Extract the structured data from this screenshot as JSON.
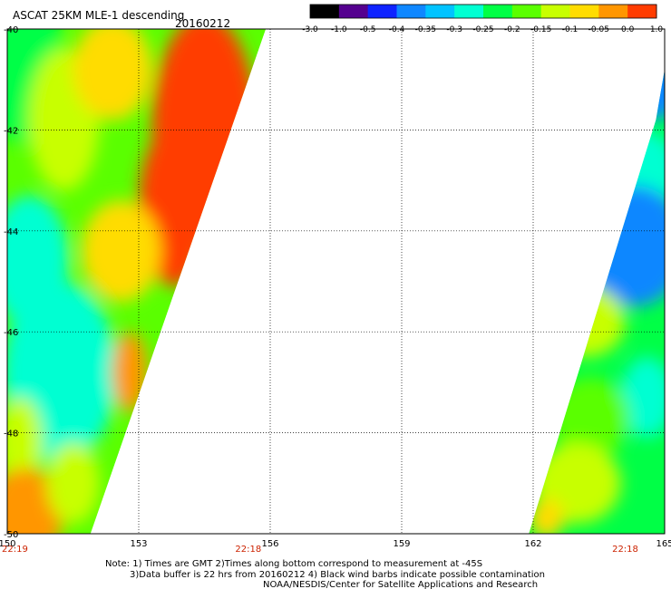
{
  "header": {
    "title": "ASCAT 25KM MLE-1 descending",
    "date": "20160212"
  },
  "colorbar": {
    "tick_labels": [
      "-3.0",
      "-1.0",
      "-0.5",
      "-0.4",
      "-0.35",
      "-0.3",
      "-0.25",
      "-0.2",
      "-0.15",
      "-0.1",
      "-0.05",
      "0.0",
      "1.0"
    ]
  },
  "footer": {
    "note_line1": "Note: 1) Times are GMT 2)Times along bottom correspond to measurement at -45S",
    "note_line2": "3)Data buffer is 22 hrs from 20160212 4) Black wind barbs indicate possible contamination",
    "note_line3": "NOAA/NESDIS/Center for Satellite Applications and Research"
  },
  "chart_data": {
    "type": "heatmap",
    "title": "ASCAT 25KM MLE-1 descending",
    "date": "20160212",
    "xlim": [
      150,
      165
    ],
    "ylim": [
      -50,
      -40
    ],
    "x_ticks": [
      150,
      153,
      156,
      159,
      162,
      165
    ],
    "y_ticks": [
      -40,
      -42,
      -44,
      -46,
      -48,
      -50
    ],
    "x_tick_labels": [
      "150",
      "153",
      "156",
      "159",
      "162",
      "165"
    ],
    "y_tick_labels": [
      "-40",
      "-42",
      "-44",
      "-46",
      "-48",
      "-50"
    ],
    "time_labels": [
      {
        "x": 150,
        "label": "22:19"
      },
      {
        "x": 155.5,
        "label": "22:18"
      },
      {
        "x": 164.1,
        "label": "22:18"
      }
    ],
    "grid": true,
    "colorbar_levels": [
      -3.0,
      -1.0,
      -0.5,
      -0.4,
      -0.35,
      -0.3,
      -0.25,
      -0.2,
      -0.15,
      -0.1,
      -0.05,
      0.0,
      1.0
    ],
    "colorbar_colors": [
      "#000000",
      "#55008f",
      "#0f23ff",
      "#0f87ff",
      "#00c3ff",
      "#00ffd2",
      "#00ff46",
      "#5aff00",
      "#c8ff00",
      "#ffdc00",
      "#ff9600",
      "#ff3c00"
    ],
    "swaths": [
      {
        "name": "west swath",
        "boundary": [
          [
            150,
            -40
          ],
          [
            155.9,
            -40
          ],
          [
            151.9,
            -50
          ],
          [
            150,
            -50
          ]
        ],
        "patches": [
          {
            "lon": 150.4,
            "lat": -40.7,
            "rx": 0.9,
            "ry": 1.6,
            "value": -0.25
          },
          {
            "lon": 151.3,
            "lat": -41.8,
            "rx": 0.8,
            "ry": 1.4,
            "value": -0.15
          },
          {
            "lon": 152.4,
            "lat": -40.8,
            "rx": 0.9,
            "ry": 1.0,
            "value": -0.1
          },
          {
            "lon": 154.5,
            "lat": -42.0,
            "rx": 1.2,
            "ry": 2.3,
            "value": 0.0
          },
          {
            "lon": 153.8,
            "lat": -43.5,
            "rx": 0.8,
            "ry": 1.6,
            "value": 0.0
          },
          {
            "lon": 152.6,
            "lat": -44.4,
            "rx": 0.9,
            "ry": 1.0,
            "value": -0.1
          },
          {
            "lon": 150.5,
            "lat": -44.6,
            "rx": 0.9,
            "ry": 1.3,
            "value": -0.3
          },
          {
            "lon": 151.2,
            "lat": -46.8,
            "rx": 1.3,
            "ry": 1.8,
            "value": -0.3
          },
          {
            "lon": 152.8,
            "lat": -46.8,
            "rx": 0.4,
            "ry": 0.8,
            "value": -0.05
          },
          {
            "lon": 150.3,
            "lat": -48.2,
            "rx": 0.5,
            "ry": 0.9,
            "value": -0.15
          },
          {
            "lon": 150.4,
            "lat": -49.6,
            "rx": 0.9,
            "ry": 0.9,
            "value": -0.05
          },
          {
            "lon": 151.5,
            "lat": -49.0,
            "rx": 0.6,
            "ry": 0.8,
            "value": -0.15
          }
        ]
      },
      {
        "name": "east swath",
        "boundary": [
          [
            165,
            -40.8
          ],
          [
            165,
            -50
          ],
          [
            161.9,
            -50
          ],
          [
            164.8,
            -41.8
          ]
        ],
        "patches": [
          {
            "lon": 164.8,
            "lat": -41.2,
            "rx": 0.6,
            "ry": 0.6,
            "value": -0.4
          },
          {
            "lon": 164.5,
            "lat": -42.8,
            "rx": 0.8,
            "ry": 0.8,
            "value": -0.3
          },
          {
            "lon": 164.3,
            "lat": -44.3,
            "rx": 1.2,
            "ry": 1.2,
            "value": -0.4
          },
          {
            "lon": 163.2,
            "lat": -45.8,
            "rx": 0.9,
            "ry": 0.7,
            "value": -0.15
          },
          {
            "lon": 164.6,
            "lat": -47.3,
            "rx": 0.6,
            "ry": 0.8,
            "value": -0.3
          },
          {
            "lon": 163.3,
            "lat": -47.7,
            "rx": 0.9,
            "ry": 0.8,
            "value": -0.2
          },
          {
            "lon": 163.0,
            "lat": -49.0,
            "rx": 1.0,
            "ry": 0.8,
            "value": -0.15
          },
          {
            "lon": 162.3,
            "lat": -49.7,
            "rx": 0.4,
            "ry": 0.4,
            "value": -0.1
          }
        ]
      }
    ]
  }
}
